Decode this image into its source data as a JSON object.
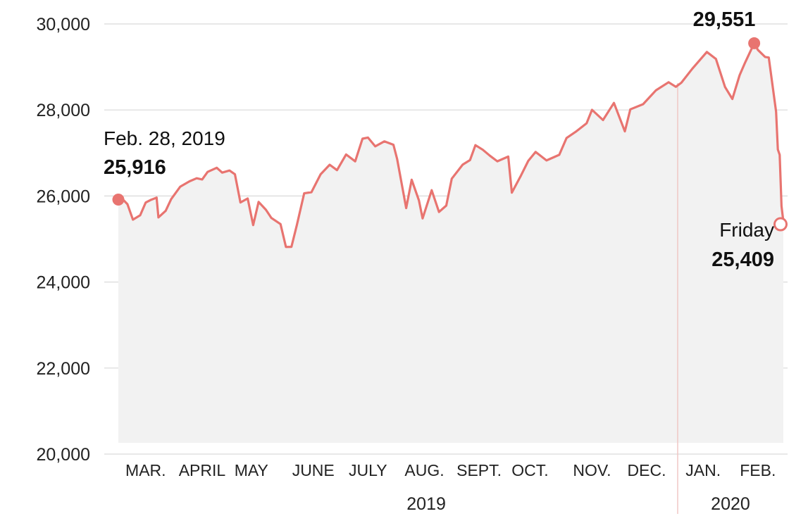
{
  "chart_data": {
    "type": "area",
    "title": "",
    "xlabel": "",
    "ylabel": "",
    "ylim": [
      20000,
      30000
    ],
    "yticks": [
      20000,
      22000,
      24000,
      26000,
      28000,
      30000
    ],
    "ytick_labels": [
      "20,000",
      "22,000",
      "24,000",
      "26,000",
      "28,000",
      "30,000"
    ],
    "grid": "horizontal",
    "colors": {
      "line": "#e87470",
      "area": "#f2f2f2",
      "grid": "#d9d9d9",
      "year_divider": "#f0c4c2"
    },
    "months": [
      {
        "label": "MAR.",
        "date": "2019-03-15"
      },
      {
        "label": "APRIL",
        "date": "2019-04-15"
      },
      {
        "label": "MAY",
        "date": "2019-05-12"
      },
      {
        "label": "JUNE",
        "date": "2019-06-15"
      },
      {
        "label": "JULY",
        "date": "2019-07-15"
      },
      {
        "label": "AUG.",
        "date": "2019-08-15"
      },
      {
        "label": "SEPT.",
        "date": "2019-09-14"
      },
      {
        "label": "OCT.",
        "date": "2019-10-12"
      },
      {
        "label": "NOV.",
        "date": "2019-11-15"
      },
      {
        "label": "DEC.",
        "date": "2019-12-15"
      },
      {
        "label": "JAN.",
        "date": "2020-01-15"
      },
      {
        "label": "FEB.",
        "date": "2020-02-14"
      }
    ],
    "years": [
      {
        "label": "2019",
        "date": "2019-08-16"
      },
      {
        "label": "2020",
        "date": "2020-01-30"
      }
    ],
    "year_divider_date": "2020-01-01",
    "series": [
      {
        "name": "",
        "x": [
          "2019-02-28",
          "2019-03-01",
          "2019-03-05",
          "2019-03-08",
          "2019-03-12",
          "2019-03-15",
          "2019-03-18",
          "2019-03-21",
          "2019-03-22",
          "2019-03-26",
          "2019-03-29",
          "2019-04-03",
          "2019-04-08",
          "2019-04-12",
          "2019-04-15",
          "2019-04-18",
          "2019-04-23",
          "2019-04-26",
          "2019-04-30",
          "2019-05-03",
          "2019-05-06",
          "2019-05-10",
          "2019-05-13",
          "2019-05-16",
          "2019-05-20",
          "2019-05-23",
          "2019-05-28",
          "2019-05-31",
          "2019-06-03",
          "2019-06-06",
          "2019-06-10",
          "2019-06-14",
          "2019-06-19",
          "2019-06-24",
          "2019-06-28",
          "2019-07-03",
          "2019-07-08",
          "2019-07-12",
          "2019-07-15",
          "2019-07-19",
          "2019-07-24",
          "2019-07-29",
          "2019-07-31",
          "2019-08-05",
          "2019-08-08",
          "2019-08-12",
          "2019-08-14",
          "2019-08-19",
          "2019-08-23",
          "2019-08-27",
          "2019-08-30",
          "2019-09-05",
          "2019-09-09",
          "2019-09-12",
          "2019-09-16",
          "2019-09-20",
          "2019-09-24",
          "2019-09-30",
          "2019-10-02",
          "2019-10-07",
          "2019-10-11",
          "2019-10-15",
          "2019-10-21",
          "2019-10-28",
          "2019-11-01",
          "2019-11-06",
          "2019-11-12",
          "2019-11-15",
          "2019-11-21",
          "2019-11-27",
          "2019-12-03",
          "2019-12-06",
          "2019-12-13",
          "2019-12-20",
          "2019-12-27",
          "2019-12-31",
          "2020-01-03",
          "2020-01-09",
          "2020-01-17",
          "2020-01-22",
          "2020-01-27",
          "2020-01-31",
          "2020-02-04",
          "2020-02-07",
          "2020-02-12",
          "2020-02-14",
          "2020-02-18",
          "2020-02-20",
          "2020-02-24",
          "2020-02-25",
          "2020-02-26",
          "2020-02-27",
          "2020-02-28"
        ],
        "values": [
          25916,
          25986,
          25810,
          25450,
          25554,
          25848,
          25914,
          25962,
          25502,
          25657,
          25928,
          26218,
          26341,
          26412,
          26384,
          26559,
          26656,
          26543,
          26593,
          26504,
          25850,
          25942,
          25324,
          25862,
          25680,
          25490,
          25347,
          24815,
          24819,
          25332,
          26062,
          26089,
          26504,
          26727,
          26600,
          26966,
          26806,
          27332,
          27359,
          27154,
          27270,
          27192,
          26864,
          25718,
          26378,
          25897,
          25479,
          26135,
          25628,
          25778,
          26403,
          26728,
          26835,
          27182,
          27076,
          26935,
          26807,
          26917,
          26079,
          26478,
          26816,
          27024,
          26827,
          26958,
          27347,
          27492,
          27691,
          28004,
          27766,
          28164,
          27502,
          28015,
          28135,
          28455,
          28645,
          28538,
          28634,
          28957,
          29348,
          29186,
          28535,
          28256,
          28807,
          29102,
          29551,
          29398,
          29232,
          29219,
          27961,
          27081,
          26957,
          25766,
          25409
        ]
      }
    ],
    "annotations": [
      {
        "label": "Feb. 28, 2019",
        "value_label": "25,916",
        "date": "2019-02-28",
        "value": 25916,
        "marker": "filled"
      },
      {
        "label": "",
        "value_label": "29,551",
        "date": "2020-02-12",
        "value": 29551,
        "marker": "filled"
      },
      {
        "label": "Friday",
        "value_label": "25,409",
        "date": "2020-02-28",
        "value": 25409,
        "marker": "open"
      }
    ]
  }
}
